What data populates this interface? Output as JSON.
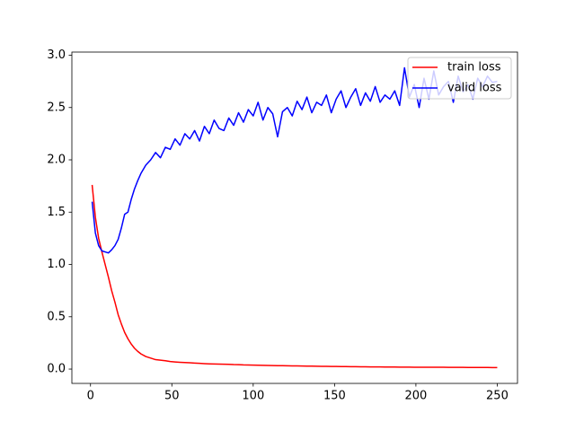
{
  "chart_data": {
    "type": "line",
    "x": [
      1,
      3,
      5,
      7,
      9,
      11,
      13,
      15,
      17,
      19,
      21,
      23,
      25,
      27,
      29,
      31,
      34,
      37,
      40,
      43,
      46,
      49,
      52,
      55,
      58,
      61,
      64,
      67,
      70,
      73,
      76,
      79,
      82,
      85,
      88,
      91,
      94,
      97,
      100,
      103,
      106,
      109,
      112,
      115,
      118,
      121,
      124,
      127,
      130,
      133,
      136,
      139,
      142,
      145,
      148,
      151,
      154,
      157,
      160,
      163,
      166,
      169,
      172,
      175,
      178,
      181,
      184,
      187,
      190,
      193,
      196,
      199,
      202,
      205,
      208,
      211,
      214,
      217,
      220,
      223,
      226,
      229,
      232,
      235,
      238,
      241,
      244,
      247,
      250
    ],
    "series": [
      {
        "name": "train loss",
        "color": "#ff0000",
        "values": [
          1.76,
          1.45,
          1.25,
          1.12,
          1.0,
          0.88,
          0.75,
          0.64,
          0.52,
          0.43,
          0.35,
          0.29,
          0.24,
          0.2,
          0.17,
          0.145,
          0.12,
          0.105,
          0.09,
          0.085,
          0.08,
          0.072,
          0.068,
          0.065,
          0.062,
          0.06,
          0.057,
          0.055,
          0.052,
          0.05,
          0.049,
          0.047,
          0.046,
          0.045,
          0.043,
          0.042,
          0.04,
          0.039,
          0.038,
          0.037,
          0.036,
          0.035,
          0.034,
          0.033,
          0.032,
          0.031,
          0.03,
          0.03,
          0.029,
          0.028,
          0.028,
          0.027,
          0.026,
          0.026,
          0.025,
          0.025,
          0.024,
          0.024,
          0.023,
          0.023,
          0.022,
          0.022,
          0.021,
          0.021,
          0.021,
          0.02,
          0.02,
          0.02,
          0.019,
          0.019,
          0.019,
          0.018,
          0.018,
          0.018,
          0.017,
          0.017,
          0.017,
          0.017,
          0.016,
          0.016,
          0.016,
          0.016,
          0.015,
          0.015,
          0.015,
          0.015,
          0.015,
          0.014,
          0.014
        ]
      },
      {
        "name": "valid loss",
        "color": "#0000ff",
        "values": [
          1.6,
          1.3,
          1.18,
          1.13,
          1.12,
          1.11,
          1.14,
          1.18,
          1.24,
          1.35,
          1.48,
          1.5,
          1.62,
          1.72,
          1.8,
          1.87,
          1.95,
          2.0,
          2.07,
          2.02,
          2.12,
          2.1,
          2.2,
          2.14,
          2.25,
          2.2,
          2.28,
          2.18,
          2.32,
          2.25,
          2.38,
          2.3,
          2.28,
          2.4,
          2.33,
          2.45,
          2.36,
          2.48,
          2.42,
          2.55,
          2.38,
          2.5,
          2.44,
          2.22,
          2.46,
          2.5,
          2.42,
          2.56,
          2.48,
          2.6,
          2.45,
          2.55,
          2.52,
          2.62,
          2.45,
          2.58,
          2.66,
          2.5,
          2.6,
          2.68,
          2.52,
          2.64,
          2.56,
          2.7,
          2.55,
          2.62,
          2.58,
          2.66,
          2.52,
          2.88,
          2.6,
          2.72,
          2.5,
          2.78,
          2.58,
          2.85,
          2.62,
          2.7,
          2.75,
          2.55,
          2.8,
          2.65,
          2.72,
          2.58,
          2.78,
          2.7,
          2.8,
          2.74,
          2.75
        ]
      }
    ],
    "xlim": [
      -11.45,
      262.45
    ],
    "xticks": [
      0,
      50,
      100,
      150,
      200,
      250
    ],
    "ylim": [
      -0.137,
      3.03
    ],
    "yticks": [
      {
        "value": 0,
        "label": "0.0"
      },
      0.5,
      {
        "value": 1,
        "label": "1.0"
      },
      1.5,
      {
        "value": 2,
        "label": "2.0"
      },
      2.5,
      {
        "value": 3,
        "label": "3.0"
      }
    ],
    "legend": "upper right"
  }
}
